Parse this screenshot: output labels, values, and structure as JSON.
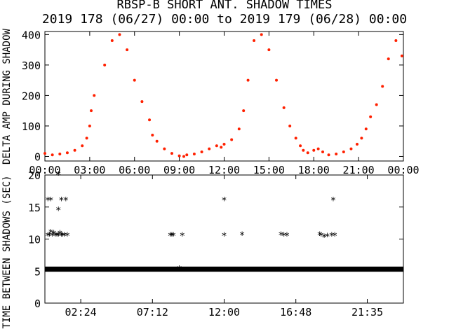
{
  "title": "RBSP-B SHORT ANT. SHADOW TIMES",
  "subtitle": "2019 178 (06/27) 00:00 to 2019 179 (06/28) 00:00",
  "colors": {
    "top_series": "#ff2000",
    "bottom_series": "#000000",
    "axes": "#000000"
  },
  "chart_data": [
    {
      "type": "scatter",
      "ylabel": "DELTA AMP DURING SHADOW",
      "xlim": [
        0,
        24
      ],
      "ylim": [
        -15,
        410
      ],
      "yticks": [
        0,
        100,
        200,
        300,
        400
      ],
      "xtick_labels": [
        "00:00",
        "03:00",
        "06:00",
        "09:00",
        "12:00",
        "15:00",
        "18:00",
        "21:00",
        "00:00"
      ],
      "xtick_hours": [
        0,
        3,
        6,
        9,
        12,
        15,
        18,
        21,
        24
      ],
      "series": [
        {
          "x": [
            0.0,
            0.5,
            1.0,
            1.5,
            2.0,
            2.5,
            2.8,
            3.0,
            3.1,
            3.3,
            4.0,
            4.5,
            5.0,
            5.5,
            6.0,
            6.5,
            7.0,
            7.2,
            7.5,
            8.0,
            8.5,
            9.0,
            9.3,
            9.5,
            10.0,
            10.5,
            11.0,
            11.5,
            11.8,
            12.0,
            12.5,
            13.0,
            13.3,
            13.6,
            14.0,
            14.5,
            15.0,
            15.5,
            16.0,
            16.4,
            16.8,
            17.1,
            17.3,
            17.6,
            18.0,
            18.3,
            18.6,
            19.0,
            19.5,
            20.0,
            20.5,
            20.9,
            21.2,
            21.5,
            21.8,
            22.2,
            22.6,
            23.0,
            23.5,
            23.9
          ],
          "y": [
            10,
            5,
            8,
            12,
            20,
            35,
            60,
            100,
            150,
            200,
            300,
            380,
            400,
            350,
            250,
            180,
            120,
            70,
            50,
            25,
            10,
            2,
            0,
            5,
            8,
            15,
            25,
            35,
            30,
            40,
            55,
            90,
            150,
            250,
            380,
            400,
            350,
            250,
            160,
            100,
            60,
            35,
            20,
            12,
            20,
            25,
            15,
            5,
            8,
            15,
            25,
            40,
            60,
            90,
            130,
            170,
            230,
            320,
            380,
            330
          ]
        }
      ]
    },
    {
      "type": "scatter",
      "ylabel": "TIME BETWEEN SHADOWS (SEC)",
      "xlim": [
        0,
        24
      ],
      "ylim": [
        0,
        20
      ],
      "yticks": [
        0,
        5,
        10,
        15,
        20
      ],
      "xtick_labels": [
        "02:24",
        "07:12",
        "12:00",
        "16:48",
        "21:35"
      ],
      "xtick_hours": [
        2.4,
        7.2,
        12.0,
        16.8,
        21.583
      ],
      "series": [
        {
          "x": [
            0.2,
            0.3,
            0.5,
            0.7,
            0.9,
            1.0,
            1.1,
            0.4,
            0.6,
            0.8,
            1.2,
            1.3,
            1.5,
            0.2,
            0.4,
            1.1,
            1.4,
            0.9,
            8.4,
            8.5,
            8.6,
            9.2,
            12.0,
            12.0,
            13.2,
            15.8,
            16.0,
            16.2,
            18.4,
            18.5,
            18.7,
            18.9,
            19.2,
            19.4,
            19.3,
            0.9,
            9.0,
            18.9
          ],
          "y": [
            10.5,
            10.5,
            10.5,
            10.5,
            10.5,
            10.8,
            10.5,
            11.0,
            10.8,
            10.5,
            10.5,
            10.5,
            10.5,
            16.0,
            16.0,
            16.0,
            16.0,
            14.5,
            10.5,
            10.5,
            10.5,
            10.5,
            16.0,
            10.5,
            10.6,
            10.6,
            10.5,
            10.5,
            10.6,
            10.5,
            10.3,
            10.4,
            10.5,
            10.5,
            16.0,
            20.0,
            5.3,
            5.1
          ]
        }
      ],
      "baseline_band": {
        "y_low": 4.9,
        "y_high": 5.7,
        "x_start": 0.0,
        "x_end": 24.0
      }
    }
  ]
}
